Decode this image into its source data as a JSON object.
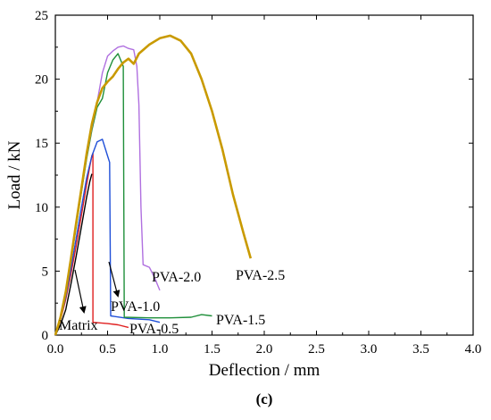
{
  "chart_data": {
    "type": "line",
    "xlabel": "Deflection / mm",
    "ylabel": "Load / kN",
    "caption": "(c)",
    "xlim": [
      0,
      4.0
    ],
    "ylim": [
      0,
      25
    ],
    "xticks": [
      "0.0",
      "0.5",
      "1.0",
      "1.5",
      "2.0",
      "2.5",
      "3.0",
      "3.5",
      "4.0"
    ],
    "yticks": [
      "0",
      "5",
      "10",
      "15",
      "20",
      "25"
    ],
    "grid": false,
    "series": [
      {
        "name": "Matrix",
        "color": "#000000",
        "points": [
          [
            0,
            0
          ],
          [
            0.05,
            0.8
          ],
          [
            0.1,
            2.0
          ],
          [
            0.15,
            4.0
          ],
          [
            0.2,
            6.2
          ],
          [
            0.25,
            8.5
          ],
          [
            0.3,
            10.8
          ],
          [
            0.33,
            12.0
          ],
          [
            0.35,
            12.6
          ]
        ]
      },
      {
        "name": "PVA-0.5",
        "color": "#e02020",
        "points": [
          [
            0,
            0
          ],
          [
            0.05,
            1.2
          ],
          [
            0.1,
            2.8
          ],
          [
            0.15,
            4.8
          ],
          [
            0.2,
            7.0
          ],
          [
            0.25,
            9.4
          ],
          [
            0.3,
            11.8
          ],
          [
            0.33,
            13.2
          ],
          [
            0.35,
            14.0
          ],
          [
            0.36,
            14.2
          ],
          [
            0.36,
            1.0
          ],
          [
            0.5,
            0.9
          ],
          [
            0.6,
            0.8
          ],
          [
            0.7,
            0.6
          ]
        ]
      },
      {
        "name": "PVA-1.0",
        "color": "#1f4fd8",
        "points": [
          [
            0,
            0
          ],
          [
            0.05,
            1.3
          ],
          [
            0.1,
            3.0
          ],
          [
            0.15,
            5.2
          ],
          [
            0.2,
            7.6
          ],
          [
            0.25,
            10.0
          ],
          [
            0.3,
            12.3
          ],
          [
            0.35,
            14.0
          ],
          [
            0.4,
            15.1
          ],
          [
            0.45,
            15.3
          ],
          [
            0.5,
            14.0
          ],
          [
            0.52,
            13.5
          ],
          [
            0.53,
            1.5
          ],
          [
            0.7,
            1.3
          ],
          [
            0.9,
            1.2
          ],
          [
            1.0,
            1.0
          ]
        ]
      },
      {
        "name": "PVA-1.5",
        "color": "#1f8f3a",
        "points": [
          [
            0,
            0
          ],
          [
            0.05,
            1.4
          ],
          [
            0.1,
            3.3
          ],
          [
            0.15,
            5.8
          ],
          [
            0.2,
            8.5
          ],
          [
            0.25,
            11.2
          ],
          [
            0.3,
            13.8
          ],
          [
            0.35,
            16.0
          ],
          [
            0.4,
            17.8
          ],
          [
            0.45,
            18.5
          ],
          [
            0.5,
            20.5
          ],
          [
            0.55,
            21.5
          ],
          [
            0.6,
            22.0
          ],
          [
            0.65,
            21.0
          ],
          [
            0.66,
            1.4
          ],
          [
            0.9,
            1.35
          ],
          [
            1.1,
            1.35
          ],
          [
            1.3,
            1.4
          ],
          [
            1.4,
            1.6
          ],
          [
            1.5,
            1.5
          ]
        ]
      },
      {
        "name": "PVA-2.0",
        "color": "#b070e0",
        "points": [
          [
            0,
            0
          ],
          [
            0.05,
            1.5
          ],
          [
            0.1,
            3.5
          ],
          [
            0.15,
            6.0
          ],
          [
            0.2,
            8.8
          ],
          [
            0.25,
            11.5
          ],
          [
            0.3,
            14.0
          ],
          [
            0.35,
            16.2
          ],
          [
            0.4,
            18.2
          ],
          [
            0.45,
            20.5
          ],
          [
            0.5,
            21.8
          ],
          [
            0.55,
            22.2
          ],
          [
            0.6,
            22.5
          ],
          [
            0.65,
            22.6
          ],
          [
            0.7,
            22.4
          ],
          [
            0.75,
            22.3
          ],
          [
            0.78,
            21.0
          ],
          [
            0.8,
            18.0
          ],
          [
            0.82,
            10.0
          ],
          [
            0.84,
            5.5
          ],
          [
            0.9,
            5.3
          ],
          [
            0.95,
            4.5
          ],
          [
            1.0,
            3.5
          ]
        ]
      },
      {
        "name": "PVA-2.5",
        "color": "#c99a00",
        "points": [
          [
            0,
            0
          ],
          [
            0.05,
            1.4
          ],
          [
            0.1,
            3.4
          ],
          [
            0.15,
            6.0
          ],
          [
            0.2,
            8.8
          ],
          [
            0.25,
            11.5
          ],
          [
            0.3,
            14.2
          ],
          [
            0.35,
            16.5
          ],
          [
            0.4,
            18.2
          ],
          [
            0.45,
            19.3
          ],
          [
            0.5,
            19.8
          ],
          [
            0.55,
            20.2
          ],
          [
            0.6,
            20.8
          ],
          [
            0.65,
            21.3
          ],
          [
            0.7,
            21.6
          ],
          [
            0.75,
            21.2
          ],
          [
            0.8,
            22.0
          ],
          [
            0.9,
            22.7
          ],
          [
            1.0,
            23.2
          ],
          [
            1.1,
            23.4
          ],
          [
            1.2,
            23.0
          ],
          [
            1.3,
            22.0
          ],
          [
            1.4,
            20.0
          ],
          [
            1.5,
            17.5
          ],
          [
            1.6,
            14.5
          ],
          [
            1.7,
            11.0
          ],
          [
            1.8,
            8.0
          ],
          [
            1.87,
            6.0
          ]
        ]
      }
    ],
    "labels": {
      "Matrix": "Matrix",
      "PVA-0.5": "PVA-0.5",
      "PVA-1.0": "PVA-1.0",
      "PVA-1.5": "PVA-1.5",
      "PVA-2.0": "PVA-2.0",
      "PVA-2.5": "PVA-2.5"
    }
  }
}
